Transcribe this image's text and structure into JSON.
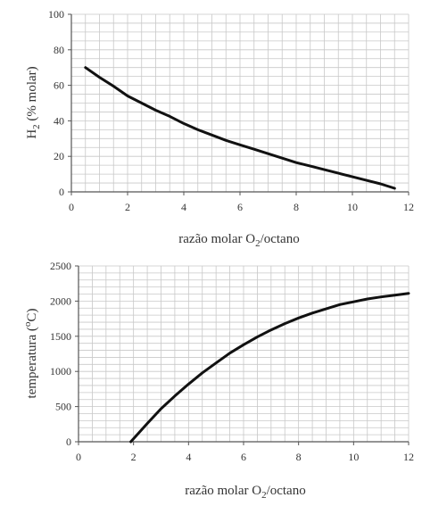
{
  "chart_data": [
    {
      "type": "line",
      "xlabel": {
        "main": "razão molar O",
        "sub": "2",
        "rest": "/octano"
      },
      "ylabel": {
        "main": "H",
        "sub": "2",
        "rest": " (% molar)"
      },
      "xlim": [
        0,
        12
      ],
      "ylim": [
        0,
        100
      ],
      "xticks": [
        "0",
        "2",
        "4",
        "6",
        "8",
        "10",
        "12"
      ],
      "yticks": [
        "0",
        "20",
        "40",
        "60",
        "80",
        "100"
      ],
      "grid": true,
      "series": [
        {
          "color": "#111111",
          "x": [
            0.5,
            1,
            1.5,
            2,
            2.5,
            3,
            3.5,
            4,
            4.5,
            5,
            5.5,
            6,
            6.5,
            7,
            7.5,
            8,
            8.5,
            9,
            9.5,
            10,
            10.5,
            11,
            11.5
          ],
          "y": [
            70,
            64.5,
            59.5,
            54,
            50,
            46,
            42.5,
            38.5,
            35,
            32,
            29,
            26.5,
            24,
            21.5,
            19,
            16.5,
            14.5,
            12.5,
            10.5,
            8.5,
            6.5,
            4.5,
            2
          ]
        }
      ]
    },
    {
      "type": "line",
      "xlabel": {
        "main": "razão molar O",
        "sub": "2",
        "rest": "/octano"
      },
      "ylabel": {
        "main": "temperatura (",
        "sup": "o",
        "rest": "C)"
      },
      "xlim": [
        0,
        12
      ],
      "ylim": [
        0,
        2500
      ],
      "xticks": [
        "0",
        "2",
        "4",
        "6",
        "8",
        "10",
        "12"
      ],
      "yticks": [
        "0",
        "500",
        "1000",
        "1500",
        "2000",
        "2500"
      ],
      "grid": true,
      "series": [
        {
          "color": "#111111",
          "x": [
            1.9,
            2.5,
            3,
            3.5,
            4,
            4.5,
            5,
            5.5,
            6,
            6.5,
            7,
            7.5,
            8,
            8.5,
            9,
            9.5,
            10,
            10.5,
            11,
            11.5,
            12
          ],
          "y": [
            0,
            260,
            470,
            650,
            820,
            980,
            1120,
            1260,
            1380,
            1490,
            1590,
            1680,
            1760,
            1830,
            1890,
            1950,
            1990,
            2030,
            2060,
            2085,
            2110
          ]
        }
      ]
    }
  ]
}
